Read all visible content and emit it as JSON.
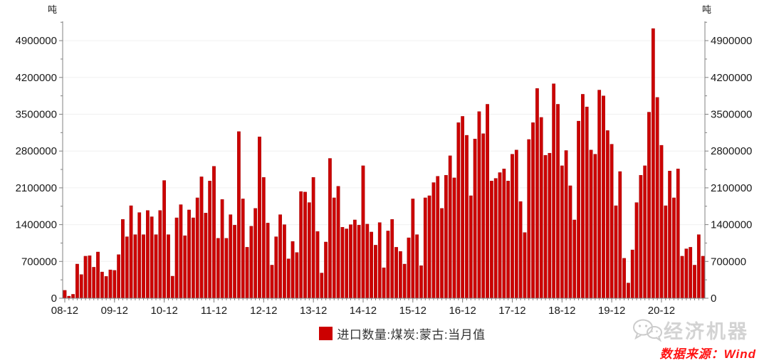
{
  "unit_label_left": "吨",
  "unit_label_right": "吨",
  "legend": {
    "label": "进口数量:煤炭:蒙古:当月值",
    "color": "#CC0000"
  },
  "watermark_text": "经济机器",
  "source_note": "数据来源：Wind",
  "chart_data": {
    "type": "bar",
    "title": "",
    "ylabel": "吨",
    "ylim": [
      0,
      4900000
    ],
    "ytick_interval": 700000,
    "ytick_labels": [
      "0",
      "700000",
      "1400000",
      "2100000",
      "2800000",
      "3500000",
      "4200000",
      "4900000"
    ],
    "grid": "horizontal-light",
    "legend_position": "bottom-center",
    "bar_color": "#CC0000",
    "start_month": "2008-12",
    "end_month": "2021-10",
    "xtick_labels": [
      "08-12",
      "09-12",
      "10-12",
      "11-12",
      "12-12",
      "13-12",
      "14-12",
      "15-12",
      "16-12",
      "17-12",
      "18-12",
      "19-12",
      "20-12"
    ],
    "series": [
      {
        "name": "进口数量:煤炭:蒙古:当月值",
        "values": [
          150000,
          40000,
          75000,
          650000,
          450000,
          800000,
          810000,
          590000,
          880000,
          500000,
          415000,
          540000,
          530000,
          830000,
          1500000,
          1170000,
          1760000,
          1210000,
          1630000,
          1210000,
          1670000,
          1550000,
          1210000,
          1670000,
          2240000,
          1210000,
          420000,
          1530000,
          1780000,
          1190000,
          1680000,
          1530000,
          1910000,
          2310000,
          1620000,
          2230000,
          2510000,
          1140000,
          1880000,
          1140000,
          1590000,
          1390000,
          3170000,
          1890000,
          970000,
          1370000,
          1710000,
          3070000,
          2300000,
          1430000,
          630000,
          1170000,
          1590000,
          1400000,
          750000,
          1080000,
          870000,
          2030000,
          2020000,
          1820000,
          2300000,
          1270000,
          480000,
          1070000,
          2660000,
          1910000,
          2130000,
          1350000,
          1320000,
          1400000,
          1490000,
          1390000,
          2520000,
          1410000,
          1260000,
          1010000,
          1440000,
          580000,
          1280000,
          1500000,
          970000,
          890000,
          650000,
          1150000,
          1890000,
          1210000,
          620000,
          1910000,
          1950000,
          2200000,
          2320000,
          1710000,
          2340000,
          2710000,
          2290000,
          3340000,
          3460000,
          3100000,
          1950000,
          3030000,
          3550000,
          3130000,
          3690000,
          2230000,
          2280000,
          2390000,
          2460000,
          2230000,
          2740000,
          2820000,
          1840000,
          1250000,
          3020000,
          3340000,
          3990000,
          3440000,
          2720000,
          2760000,
          4080000,
          3690000,
          2520000,
          2810000,
          2140000,
          1490000,
          3370000,
          3880000,
          3640000,
          2820000,
          2740000,
          3960000,
          3850000,
          3190000,
          2930000,
          1760000,
          2410000,
          760000,
          290000,
          920000,
          1820000,
          2340000,
          2520000,
          3540000,
          5130000,
          3820000,
          2910000,
          1760000,
          2420000,
          1910000,
          2460000,
          800000,
          940000,
          970000,
          630000,
          1210000,
          800000
        ]
      }
    ]
  }
}
